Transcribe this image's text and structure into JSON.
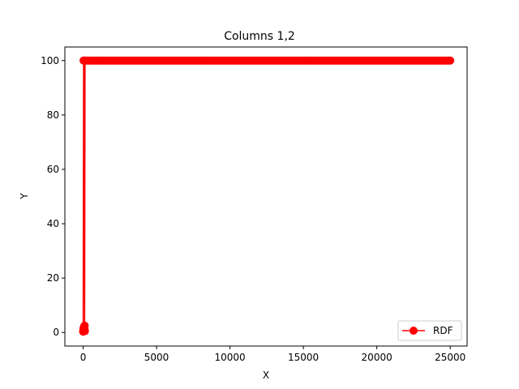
{
  "chart_data": {
    "type": "line",
    "title": "Columns 1,2",
    "xlabel": "X",
    "ylabel": "Y",
    "xlim": [
      -1245,
      26150
    ],
    "ylim": [
      -5,
      105
    ],
    "xticks": [
      0,
      5000,
      10000,
      15000,
      20000,
      25000
    ],
    "yticks": [
      0,
      20,
      40,
      60,
      80,
      100
    ],
    "grid": false,
    "legend": {
      "position": "lower-right"
    },
    "series": [
      {
        "name": "RDF",
        "color": "#ff0000",
        "marker": "circle",
        "segments": [
          {
            "x": [
              0,
              20,
              40,
              60,
              80,
              100,
              120
            ],
            "y": [
              0.3,
              1.5,
              0.8,
              2.2,
              1.0,
              2.5,
              0.5
            ]
          },
          {
            "x": [
              0,
              30,
              60,
              100,
              130
            ],
            "y": [
              0.5,
              100,
              100,
              1.2,
              100
            ]
          },
          {
            "x_start": 200,
            "x_end": 25000,
            "x_step": 100,
            "y": 100
          }
        ]
      }
    ]
  }
}
